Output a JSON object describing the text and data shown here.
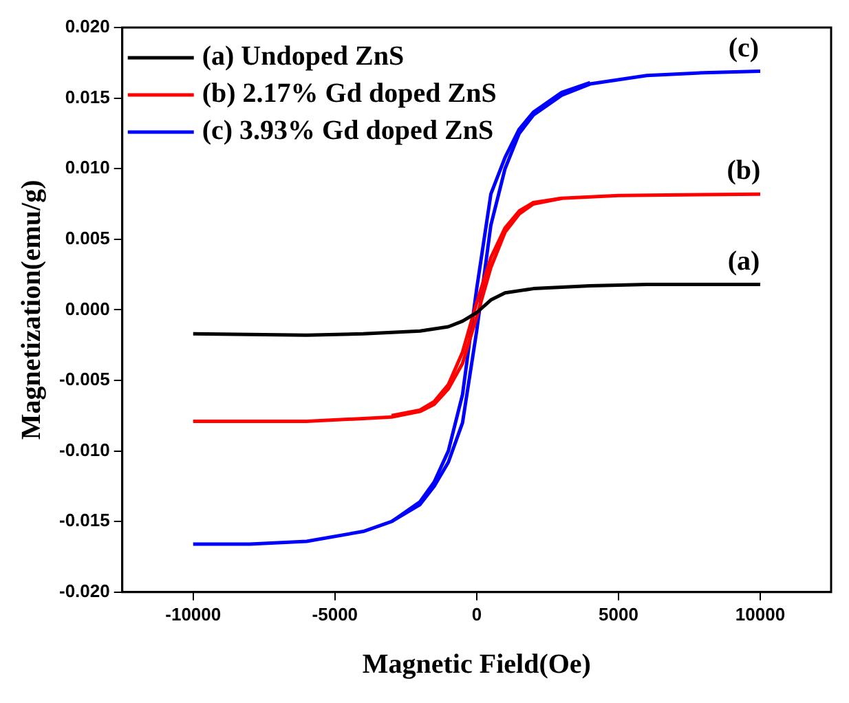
{
  "chart_data": {
    "type": "line",
    "xlabel": "Magnetic Field(Oe)",
    "ylabel": "Magnetization(emu/g)",
    "xlim": [
      -12500,
      12500
    ],
    "xticks": [
      -10000,
      -5000,
      0,
      5000,
      10000
    ],
    "ylim": [
      -0.02,
      0.02
    ],
    "yticks": [
      {
        "value": -0.02,
        "label": "-0.020"
      },
      {
        "value": -0.015,
        "label": "-0.015"
      },
      {
        "value": -0.01,
        "label": "-0.010"
      },
      {
        "value": -0.005,
        "label": "-0.005"
      },
      {
        "value": 0,
        "label": "0.000"
      },
      {
        "value": 0.005,
        "label": "0.005"
      },
      {
        "value": 0.01,
        "label": "0.010"
      },
      {
        "value": 0.015,
        "label": "0.015"
      },
      {
        "value": 0.02,
        "label": "0.020"
      }
    ],
    "grid": false,
    "legend": "top left",
    "marker": "none",
    "line_style": "solid",
    "series": [
      {
        "name": "(a) Undoped ZnS",
        "color": "#000000",
        "x": [
          -10000,
          -6000,
          -4000,
          -2000,
          -1000,
          -500,
          0,
          500,
          1000,
          2000,
          4000,
          6000,
          10000
        ],
        "values": [
          -0.0017,
          -0.0018,
          -0.0017,
          -0.0015,
          -0.0012,
          -0.0008,
          -0.0002,
          0.0007,
          0.0012,
          0.0015,
          0.0017,
          0.0018,
          0.0018
        ]
      },
      {
        "name": "(b) 2.17% Gd doped ZnS",
        "color": "#ff0000",
        "x": [
          -10000,
          -6000,
          -4000,
          -3000,
          -2000,
          -1500,
          -1000,
          -500,
          0,
          500,
          1000,
          1500,
          2000,
          3000,
          5000,
          10000
        ],
        "values": [
          -0.0079,
          -0.0079,
          -0.0077,
          -0.0076,
          -0.0072,
          -0.0067,
          -0.0056,
          -0.0038,
          -0.0005,
          0.003,
          0.0055,
          0.0068,
          0.0075,
          0.0079,
          0.0081,
          0.0082
        ]
      },
      {
        "color": "#ff0000",
        "x": [
          3000,
          2000,
          1500,
          1000,
          500,
          0,
          -500,
          -1000,
          -1500,
          -2000,
          -3000
        ],
        "values": [
          0.0079,
          0.0076,
          0.007,
          0.0058,
          0.0037,
          0.0005,
          -0.003,
          -0.0053,
          -0.0065,
          -0.0071,
          -0.0075
        ]
      },
      {
        "name": "(c) 3.93% Gd doped ZnS",
        "color": "#0000ff",
        "x": [
          -10000,
          -8000,
          -6000,
          -4000,
          -3000,
          -2000,
          -1500,
          -1000,
          -500,
          0,
          500,
          1000,
          1500,
          2000,
          3000,
          4000,
          6000,
          8000,
          10000
        ],
        "values": [
          -0.0166,
          -0.0166,
          -0.0164,
          -0.0157,
          -0.015,
          -0.0138,
          -0.0125,
          -0.0108,
          -0.008,
          -0.0015,
          0.006,
          0.01,
          0.0125,
          0.0138,
          0.0152,
          0.016,
          0.0166,
          0.0168,
          0.0169
        ]
      },
      {
        "color": "#0000ff",
        "x": [
          4000,
          3000,
          2000,
          1500,
          1000,
          500,
          0,
          -500,
          -1000,
          -1500,
          -2000,
          -3000
        ],
        "values": [
          0.0161,
          0.0154,
          0.014,
          0.0128,
          0.0108,
          0.0082,
          0.0015,
          -0.006,
          -0.01,
          -0.0122,
          -0.0136,
          -0.015
        ]
      }
    ],
    "annotations": [
      "(c)",
      "(b)",
      "(a)"
    ]
  }
}
